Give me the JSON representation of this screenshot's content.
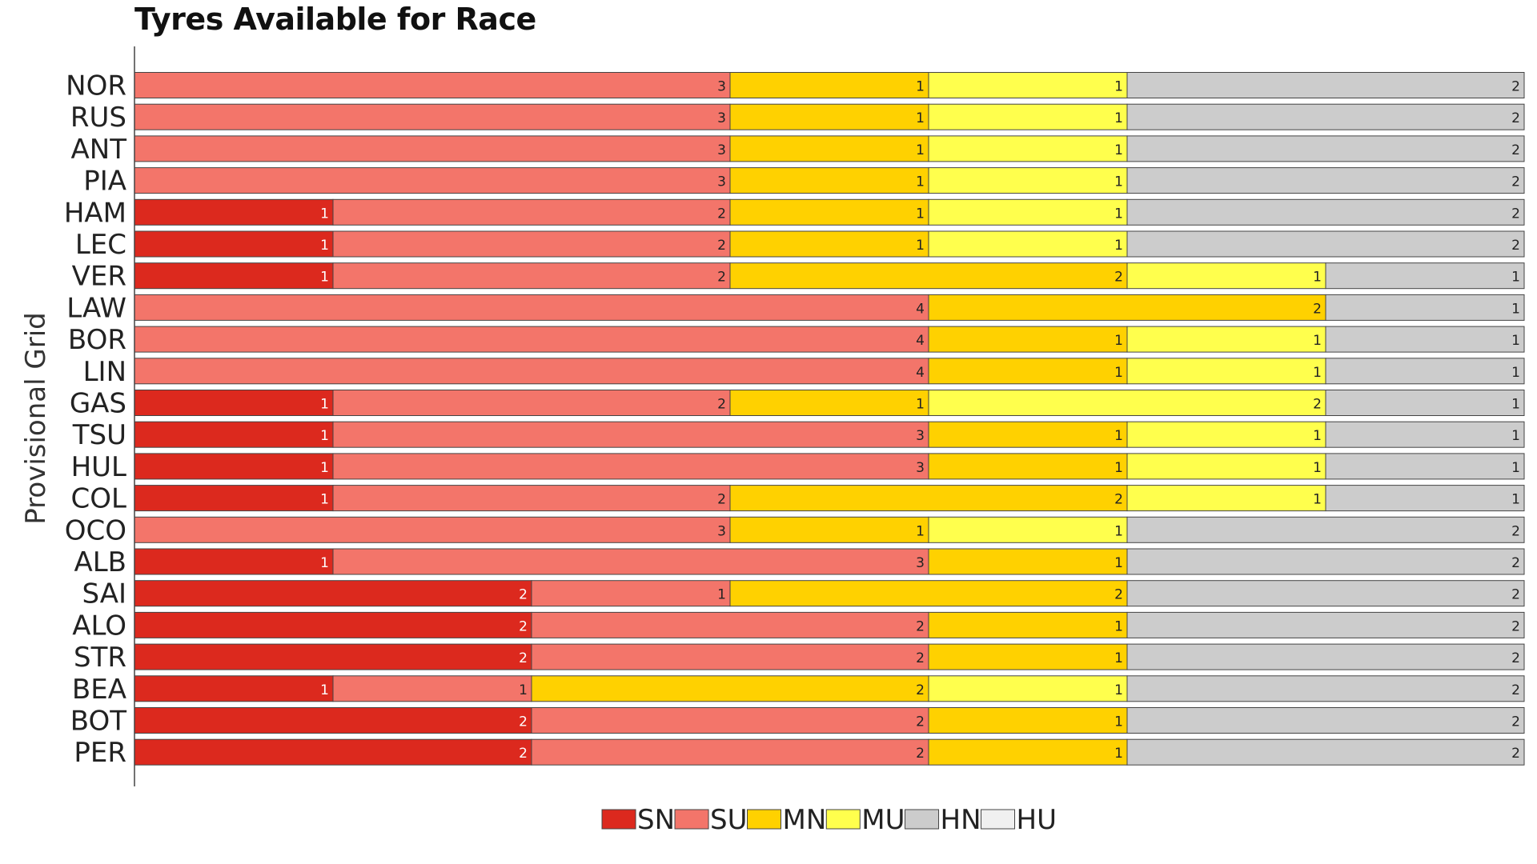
{
  "chart_data": {
    "type": "bar",
    "orientation": "horizontal",
    "stacked": true,
    "title": "Tyres Available for Race",
    "ylabel": "Provisional Grid",
    "xlabel": "",
    "categories": [
      "NOR",
      "RUS",
      "ANT",
      "PIA",
      "HAM",
      "LEC",
      "VER",
      "LAW",
      "BOR",
      "LIN",
      "GAS",
      "TSU",
      "HUL",
      "COL",
      "OCO",
      "ALB",
      "SAI",
      "ALO",
      "STR",
      "BEA",
      "BOT",
      "PER"
    ],
    "series": [
      {
        "name": "SN",
        "color": "#dc291e",
        "label_color": "#ffffff",
        "values": [
          0,
          0,
          0,
          0,
          1,
          1,
          1,
          0,
          0,
          0,
          1,
          1,
          1,
          1,
          0,
          1,
          2,
          2,
          2,
          1,
          2,
          2
        ]
      },
      {
        "name": "SU",
        "color": "#f3756a",
        "label_color": "#222222",
        "values": [
          3,
          3,
          3,
          3,
          2,
          2,
          2,
          4,
          4,
          4,
          2,
          3,
          3,
          2,
          3,
          3,
          1,
          2,
          2,
          1,
          2,
          2
        ]
      },
      {
        "name": "MN",
        "color": "#ffd100",
        "label_color": "#222222",
        "values": [
          1,
          1,
          1,
          1,
          1,
          1,
          2,
          2,
          1,
          1,
          1,
          1,
          1,
          2,
          1,
          1,
          2,
          1,
          1,
          2,
          1,
          1
        ]
      },
      {
        "name": "MU",
        "color": "#ffff4d",
        "label_color": "#222222",
        "values": [
          1,
          1,
          1,
          1,
          1,
          1,
          1,
          0,
          1,
          1,
          2,
          1,
          1,
          1,
          1,
          0,
          0,
          0,
          0,
          1,
          0,
          0
        ]
      },
      {
        "name": "HN",
        "color": "#cccccc",
        "label_color": "#222222",
        "values": [
          2,
          2,
          2,
          2,
          2,
          2,
          1,
          1,
          1,
          1,
          1,
          1,
          1,
          1,
          2,
          2,
          2,
          2,
          2,
          2,
          2,
          2
        ]
      },
      {
        "name": "HU",
        "color": "#f0f0f0",
        "label_color": "#222222",
        "values": [
          0,
          0,
          0,
          0,
          0,
          0,
          0,
          0,
          0,
          0,
          0,
          0,
          0,
          0,
          0,
          0,
          0,
          0,
          0,
          0,
          0,
          0
        ]
      }
    ],
    "xlim": [
      0,
      7
    ],
    "grid": false,
    "legend_position": "bottom-center"
  }
}
